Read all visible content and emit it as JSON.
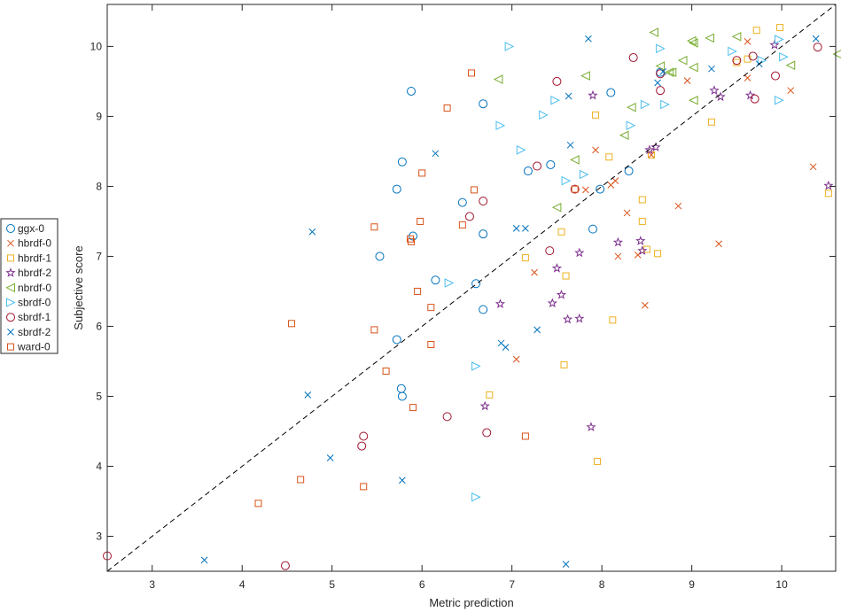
{
  "chart_data": {
    "type": "scatter",
    "xlabel": "Metric prediction",
    "ylabel": "Subjective score",
    "xlim": [
      2.5,
      10.6
    ],
    "ylim": [
      2.5,
      10.6
    ],
    "xticks": [
      3,
      4,
      5,
      6,
      7,
      8,
      9,
      10
    ],
    "yticks": [
      3,
      4,
      5,
      6,
      7,
      8,
      9,
      10
    ],
    "grid": false,
    "legend_position": "outside-left",
    "reference_line": "dashed-diagonal",
    "series": [
      {
        "name": "ggx-0",
        "marker": "circle",
        "color": "#0072BD",
        "points": [
          [
            5.88,
            9.36
          ],
          [
            5.78,
            8.35
          ],
          [
            5.72,
            7.96
          ],
          [
            5.9,
            7.29
          ],
          [
            5.53,
            7.0
          ],
          [
            6.15,
            6.66
          ],
          [
            6.45,
            7.77
          ],
          [
            6.68,
            9.18
          ],
          [
            6.68,
            7.32
          ],
          [
            6.6,
            6.61
          ],
          [
            6.68,
            6.24
          ],
          [
            5.72,
            5.81
          ],
          [
            5.77,
            5.11
          ],
          [
            5.78,
            5.0
          ],
          [
            7.18,
            8.22
          ],
          [
            7.43,
            8.31
          ],
          [
            7.98,
            7.96
          ],
          [
            7.9,
            7.39
          ],
          [
            8.1,
            9.34
          ],
          [
            8.3,
            8.22
          ],
          [
            8.65,
            9.63
          ]
        ]
      },
      {
        "name": "hbrdf-0",
        "marker": "x",
        "color": "#D95319",
        "points": [
          [
            7.25,
            6.77
          ],
          [
            7.05,
            5.53
          ],
          [
            7.82,
            7.95
          ],
          [
            7.93,
            8.52
          ],
          [
            8.1,
            8.02
          ],
          [
            8.15,
            8.08
          ],
          [
            8.18,
            7.0
          ],
          [
            8.28,
            7.62
          ],
          [
            8.4,
            7.02
          ],
          [
            8.48,
            6.3
          ],
          [
            8.55,
            8.45
          ],
          [
            8.85,
            7.72
          ],
          [
            8.95,
            9.51
          ],
          [
            9.3,
            7.18
          ],
          [
            9.62,
            10.07
          ],
          [
            9.62,
            9.55
          ],
          [
            10.1,
            9.37
          ],
          [
            10.35,
            8.28
          ]
        ]
      },
      {
        "name": "hbrdf-1",
        "marker": "square",
        "color": "#EDB120",
        "points": [
          [
            6.75,
            5.02
          ],
          [
            7.15,
            6.98
          ],
          [
            7.55,
            7.35
          ],
          [
            7.6,
            6.72
          ],
          [
            7.58,
            5.45
          ],
          [
            7.93,
            9.02
          ],
          [
            7.95,
            4.07
          ],
          [
            8.08,
            8.42
          ],
          [
            8.12,
            6.09
          ],
          [
            8.45,
            7.81
          ],
          [
            8.45,
            7.5
          ],
          [
            8.5,
            7.1
          ],
          [
            8.55,
            8.45
          ],
          [
            8.62,
            7.04
          ],
          [
            9.22,
            8.92
          ],
          [
            9.5,
            9.77
          ],
          [
            9.62,
            9.82
          ],
          [
            9.72,
            10.23
          ],
          [
            9.98,
            10.27
          ],
          [
            10.52,
            7.9
          ]
        ]
      },
      {
        "name": "hbrdf-2",
        "marker": "star",
        "color": "#7E2F8E",
        "points": [
          [
            6.7,
            4.86
          ],
          [
            6.87,
            6.32
          ],
          [
            7.45,
            6.33
          ],
          [
            7.5,
            6.83
          ],
          [
            7.55,
            6.45
          ],
          [
            7.62,
            6.1
          ],
          [
            7.75,
            7.05
          ],
          [
            7.75,
            6.11
          ],
          [
            7.88,
            4.56
          ],
          [
            7.9,
            9.3
          ],
          [
            8.18,
            7.2
          ],
          [
            8.43,
            7.22
          ],
          [
            8.45,
            7.08
          ],
          [
            8.53,
            8.52
          ],
          [
            8.6,
            8.56
          ],
          [
            9.25,
            9.37
          ],
          [
            9.32,
            9.28
          ],
          [
            9.65,
            9.3
          ],
          [
            9.92,
            10.02
          ],
          [
            10.52,
            8.01
          ]
        ]
      },
      {
        "name": "nbrdf-0",
        "marker": "triangle-left",
        "color": "#77AC30",
        "points": [
          [
            6.85,
            9.53
          ],
          [
            7.5,
            7.7
          ],
          [
            7.7,
            8.38
          ],
          [
            7.82,
            9.58
          ],
          [
            8.25,
            8.73
          ],
          [
            8.33,
            9.13
          ],
          [
            8.58,
            10.2
          ],
          [
            8.65,
            9.72
          ],
          [
            8.75,
            9.63
          ],
          [
            8.78,
            9.63
          ],
          [
            8.9,
            9.8
          ],
          [
            9.0,
            10.08
          ],
          [
            9.02,
            10.05
          ],
          [
            9.02,
            9.7
          ],
          [
            9.02,
            9.23
          ],
          [
            9.2,
            10.12
          ],
          [
            9.5,
            10.14
          ],
          [
            10.1,
            9.73
          ],
          [
            10.62,
            9.89
          ]
        ]
      },
      {
        "name": "sbrdf-0",
        "marker": "triangle-right",
        "color": "#4DBEEE",
        "points": [
          [
            6.3,
            6.62
          ],
          [
            6.6,
            5.43
          ],
          [
            6.6,
            3.56
          ],
          [
            6.87,
            8.87
          ],
          [
            6.97,
            10.0
          ],
          [
            7.1,
            8.52
          ],
          [
            7.35,
            9.02
          ],
          [
            7.48,
            9.23
          ],
          [
            7.6,
            8.08
          ],
          [
            7.8,
            8.17
          ],
          [
            8.32,
            8.87
          ],
          [
            8.48,
            9.17
          ],
          [
            8.65,
            9.97
          ],
          [
            8.7,
            9.17
          ],
          [
            9.45,
            9.93
          ],
          [
            9.78,
            9.8
          ],
          [
            9.97,
            10.1
          ],
          [
            9.97,
            9.23
          ],
          [
            10.02,
            9.85
          ]
        ]
      },
      {
        "name": "sbrdf-1",
        "marker": "circle",
        "color": "#A2142F",
        "points": [
          [
            2.5,
            2.72
          ],
          [
            4.48,
            2.58
          ],
          [
            5.35,
            4.43
          ],
          [
            5.33,
            4.29
          ],
          [
            6.28,
            4.71
          ],
          [
            6.53,
            7.57
          ],
          [
            6.68,
            7.79
          ],
          [
            6.72,
            4.48
          ],
          [
            7.28,
            8.29
          ],
          [
            7.42,
            7.08
          ],
          [
            7.5,
            9.5
          ],
          [
            7.7,
            7.96
          ],
          [
            8.35,
            9.84
          ],
          [
            8.65,
            9.37
          ],
          [
            9.5,
            9.8
          ],
          [
            9.68,
            9.86
          ],
          [
            9.7,
            9.25
          ],
          [
            9.93,
            9.58
          ],
          [
            10.4,
            9.99
          ],
          [
            8.65,
            9.61
          ]
        ]
      },
      {
        "name": "sbrdf-2",
        "marker": "x",
        "color": "#0072BD",
        "points": [
          [
            3.58,
            2.66
          ],
          [
            4.73,
            5.02
          ],
          [
            4.78,
            7.35
          ],
          [
            4.98,
            4.12
          ],
          [
            5.78,
            3.8
          ],
          [
            6.15,
            8.47
          ],
          [
            6.88,
            5.76
          ],
          [
            6.93,
            5.7
          ],
          [
            7.05,
            7.4
          ],
          [
            7.15,
            7.4
          ],
          [
            7.28,
            5.95
          ],
          [
            7.63,
            9.29
          ],
          [
            7.65,
            8.59
          ],
          [
            7.6,
            2.6
          ],
          [
            7.85,
            10.11
          ],
          [
            8.62,
            9.48
          ],
          [
            8.68,
            9.64
          ],
          [
            9.22,
            9.68
          ],
          [
            9.75,
            9.75
          ],
          [
            10.38,
            10.11
          ]
        ]
      },
      {
        "name": "ward-0",
        "marker": "square",
        "color": "#D95319",
        "points": [
          [
            4.18,
            3.47
          ],
          [
            4.55,
            6.04
          ],
          [
            4.65,
            3.81
          ],
          [
            5.35,
            3.71
          ],
          [
            5.47,
            7.42
          ],
          [
            5.47,
            5.95
          ],
          [
            5.6,
            5.36
          ],
          [
            5.87,
            7.25
          ],
          [
            5.88,
            7.21
          ],
          [
            5.9,
            4.84
          ],
          [
            5.95,
            6.5
          ],
          [
            5.98,
            7.5
          ],
          [
            6.0,
            8.19
          ],
          [
            6.1,
            6.27
          ],
          [
            6.1,
            5.74
          ],
          [
            6.28,
            9.12
          ],
          [
            6.45,
            7.45
          ],
          [
            6.55,
            9.62
          ],
          [
            6.58,
            7.95
          ],
          [
            7.15,
            4.43
          ],
          [
            7.7,
            7.96
          ]
        ]
      }
    ]
  }
}
